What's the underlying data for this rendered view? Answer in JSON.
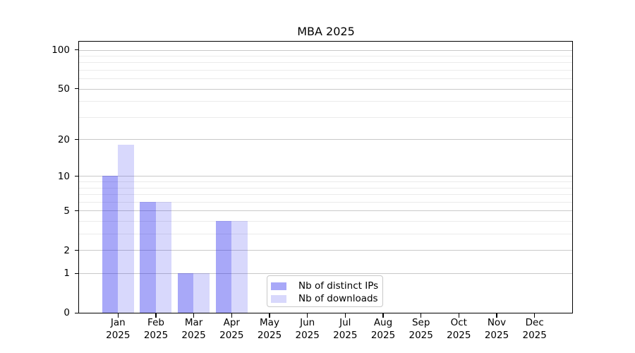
{
  "chart_data": {
    "type": "bar",
    "title": "MBA 2025",
    "categories": [
      "Jan 2025",
      "Feb 2025",
      "Mar 2025",
      "Apr 2025",
      "May 2025",
      "Jun 2025",
      "Jul 2025",
      "Aug 2025",
      "Sep 2025",
      "Oct 2025",
      "Nov 2025",
      "Dec 2025"
    ],
    "x_month_labels": [
      "Jan",
      "Feb",
      "Mar",
      "Apr",
      "May",
      "Jun",
      "Jul",
      "Aug",
      "Sep",
      "Oct",
      "Nov",
      "Dec"
    ],
    "x_year_label": "2025",
    "series": [
      {
        "name": "Nb of distinct IPs",
        "color": "rgba(20,20,235,0.37)",
        "color_on_white": "#a8a8f4",
        "values": [
          10,
          6,
          1,
          4,
          0,
          0,
          0,
          0,
          0,
          0,
          0,
          0
        ]
      },
      {
        "name": "Nb of downloads",
        "color": "rgba(20,20,235,0.165)",
        "color_on_white": "#d8d8f8",
        "values": [
          18,
          6,
          1,
          4,
          0,
          0,
          0,
          0,
          0,
          0,
          0,
          0
        ]
      }
    ],
    "yscale": "log1p",
    "ylim": [
      0,
      113
    ],
    "y_tick_labels": [
      "0",
      "1",
      "2",
      "5",
      "10",
      "20",
      "50",
      "100"
    ],
    "y_major_ticks": [
      0,
      1,
      2,
      5,
      10,
      20,
      50,
      100
    ],
    "y_minor_gridlines": [
      3,
      4,
      6,
      7,
      8,
      9,
      30,
      40,
      60,
      70,
      80,
      90
    ],
    "grid": "horizontal",
    "legend_position": "lower center",
    "colors": {
      "grid_major": "#c9c9c9",
      "grid_minor": "#ebebeb",
      "axis": "#000000",
      "text": "#000000",
      "background": "#ffffff"
    }
  }
}
